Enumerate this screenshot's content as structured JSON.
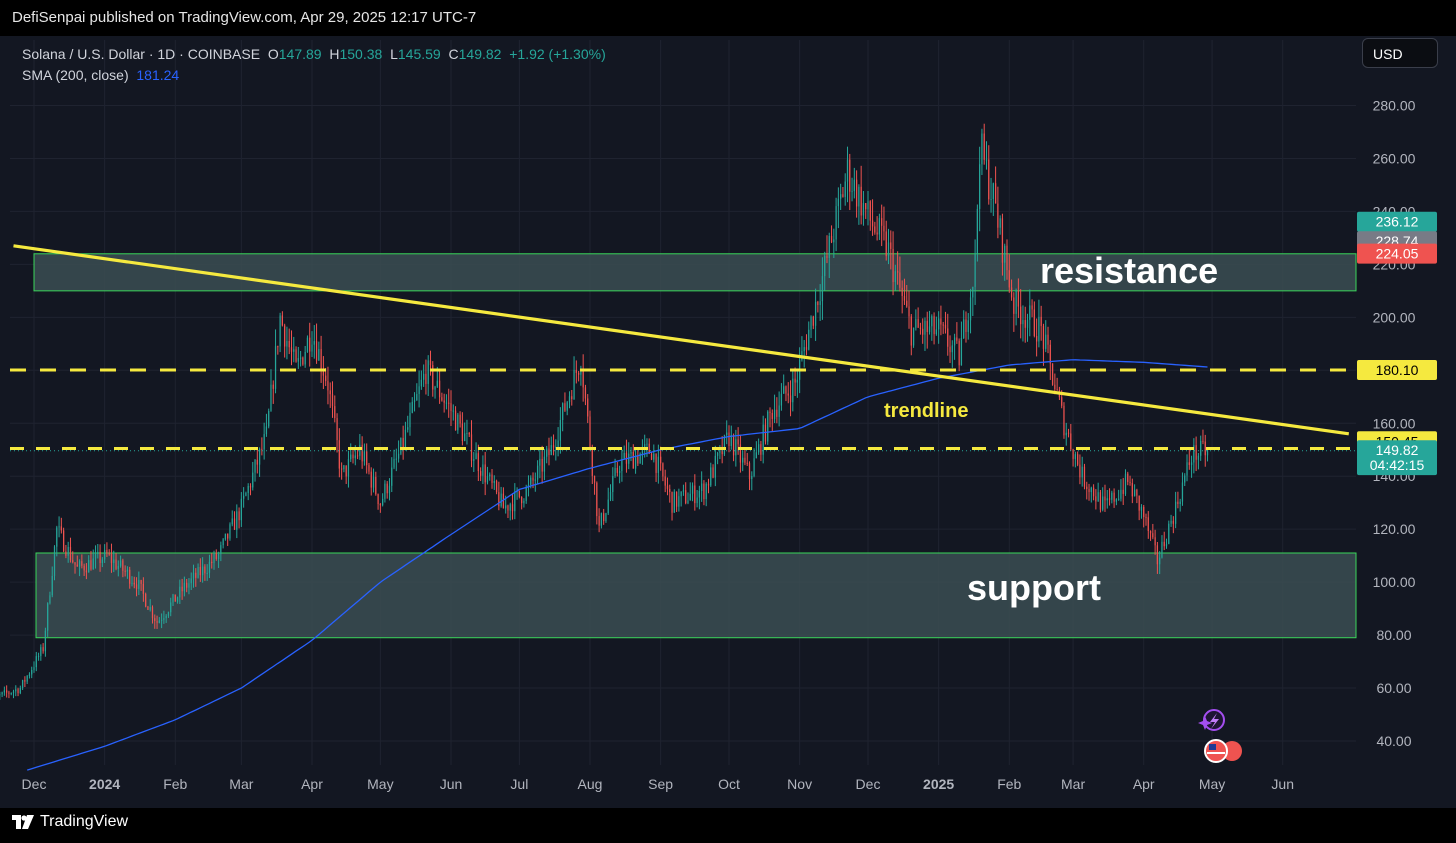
{
  "header": {
    "publish_text": "DefiSenpai published on TradingView.com, Apr 29, 2025 12:17 UTC-7"
  },
  "legend": {
    "symbol": "Solana / U.S. Dollar · 1D · COINBASE",
    "o_label": "O",
    "o": "147.89",
    "h_label": "H",
    "h": "150.38",
    "l_label": "L",
    "l": "145.59",
    "c_label": "C",
    "c": "149.82",
    "change": "+1.92 (+1.30%)",
    "sma_label": "SMA (200, close)",
    "sma_value": "181.24"
  },
  "currency_button": "USD",
  "footer": {
    "brand": "TradingView"
  },
  "colors": {
    "up": "#26a69a",
    "down": "#ef5350",
    "sma": "#2962ff",
    "trend": "#f5e93f",
    "zone": "#3b4d52",
    "zone_border": "#3ad65a"
  },
  "chart_data": {
    "type": "candlestick",
    "title": "Solana / U.S. Dollar · 1D · COINBASE",
    "ylim": [
      30,
      295
    ],
    "y_ticks": [
      "280.00",
      "260.00",
      "240.00",
      "220.00",
      "200.00",
      "180.00",
      "160.00",
      "140.00",
      "120.00",
      "100.00",
      "80.00",
      "60.00",
      "40.00"
    ],
    "x_ticks": [
      {
        "label": "Dec",
        "date": "2023-12-01",
        "bold": false
      },
      {
        "label": "2024",
        "date": "2024-01-01",
        "bold": true
      },
      {
        "label": "Feb",
        "date": "2024-02-01",
        "bold": false
      },
      {
        "label": "Mar",
        "date": "2024-03-01",
        "bold": false
      },
      {
        "label": "Apr",
        "date": "2024-04-01",
        "bold": false
      },
      {
        "label": "May",
        "date": "2024-05-01",
        "bold": false
      },
      {
        "label": "Jun",
        "date": "2024-06-01",
        "bold": false
      },
      {
        "label": "Jul",
        "date": "2024-07-01",
        "bold": false
      },
      {
        "label": "Aug",
        "date": "2024-08-01",
        "bold": false
      },
      {
        "label": "Sep",
        "date": "2024-09-01",
        "bold": false
      },
      {
        "label": "Oct",
        "date": "2024-10-01",
        "bold": false
      },
      {
        "label": "Nov",
        "date": "2024-11-01",
        "bold": false
      },
      {
        "label": "Dec",
        "date": "2024-12-01",
        "bold": false
      },
      {
        "label": "2025",
        "date": "2025-01-01",
        "bold": true
      },
      {
        "label": "Feb",
        "date": "2025-02-01",
        "bold": false
      },
      {
        "label": "Mar",
        "date": "2025-03-01",
        "bold": false
      },
      {
        "label": "Apr",
        "date": "2025-04-01",
        "bold": false
      },
      {
        "label": "May",
        "date": "2025-05-01",
        "bold": false
      },
      {
        "label": "Jun",
        "date": "2025-06-01",
        "bold": false
      }
    ],
    "price_anchors": [
      [
        "2023-11-10",
        55
      ],
      [
        "2023-11-25",
        60
      ],
      [
        "2023-12-05",
        75
      ],
      [
        "2023-12-11",
        120
      ],
      [
        "2023-12-20",
        105
      ],
      [
        "2024-01-02",
        110
      ],
      [
        "2024-01-15",
        100
      ],
      [
        "2024-01-24",
        85
      ],
      [
        "2024-02-05",
        98
      ],
      [
        "2024-02-20",
        110
      ],
      [
        "2024-03-01",
        128
      ],
      [
        "2024-03-12",
        155
      ],
      [
        "2024-03-18",
        200
      ],
      [
        "2024-03-25",
        180
      ],
      [
        "2024-04-01",
        195
      ],
      [
        "2024-04-08",
        175
      ],
      [
        "2024-04-14",
        140
      ],
      [
        "2024-04-22",
        150
      ],
      [
        "2024-05-01",
        130
      ],
      [
        "2024-05-10",
        150
      ],
      [
        "2024-05-21",
        180
      ],
      [
        "2024-06-01",
        165
      ],
      [
        "2024-06-10",
        150
      ],
      [
        "2024-06-24",
        128
      ],
      [
        "2024-07-05",
        135
      ],
      [
        "2024-07-15",
        150
      ],
      [
        "2024-07-28",
        185
      ],
      [
        "2024-08-05",
        120
      ],
      [
        "2024-08-14",
        145
      ],
      [
        "2024-08-28",
        150
      ],
      [
        "2024-09-06",
        130
      ],
      [
        "2024-09-20",
        135
      ],
      [
        "2024-10-01",
        155
      ],
      [
        "2024-10-10",
        140
      ],
      [
        "2024-10-20",
        165
      ],
      [
        "2024-10-30",
        175
      ],
      [
        "2024-11-11",
        215
      ],
      [
        "2024-11-22",
        255
      ],
      [
        "2024-12-01",
        238
      ],
      [
        "2024-12-10",
        225
      ],
      [
        "2024-12-20",
        195
      ],
      [
        "2025-01-01",
        195
      ],
      [
        "2025-01-10",
        185
      ],
      [
        "2025-01-17",
        220
      ],
      [
        "2025-01-19",
        265
      ],
      [
        "2025-01-25",
        245
      ],
      [
        "2025-02-03",
        205
      ],
      [
        "2025-02-15",
        195
      ],
      [
        "2025-02-25",
        160
      ],
      [
        "2025-03-05",
        140
      ],
      [
        "2025-03-15",
        128
      ],
      [
        "2025-03-25",
        138
      ],
      [
        "2025-04-01",
        125
      ],
      [
        "2025-04-07",
        108
      ],
      [
        "2025-04-15",
        128
      ],
      [
        "2025-04-22",
        148
      ],
      [
        "2025-04-29",
        149.82
      ]
    ],
    "sma_anchors": [
      [
        "2023-11-28",
        29
      ],
      [
        "2024-01-01",
        38
      ],
      [
        "2024-02-01",
        48
      ],
      [
        "2024-03-01",
        60
      ],
      [
        "2024-04-01",
        78
      ],
      [
        "2024-05-01",
        100
      ],
      [
        "2024-06-01",
        118
      ],
      [
        "2024-07-01",
        135
      ],
      [
        "2024-08-01",
        143
      ],
      [
        "2024-09-01",
        150
      ],
      [
        "2024-10-01",
        155
      ],
      [
        "2024-11-01",
        158
      ],
      [
        "2024-12-01",
        170
      ],
      [
        "2025-01-01",
        177
      ],
      [
        "2025-02-01",
        182
      ],
      [
        "2025-03-01",
        184
      ],
      [
        "2025-04-01",
        183
      ],
      [
        "2025-04-29",
        181.24
      ]
    ],
    "resistance_zone": [
      210,
      224
    ],
    "support_zone": [
      79,
      111
    ],
    "dashed_levels": [
      180.1,
      150.45
    ],
    "trendline": [
      [
        "2023-11-22",
        227
      ],
      [
        "2025-06-30",
        156
      ]
    ],
    "annotations": {
      "resistance": "resistance",
      "support": "support",
      "trendline": "trendline"
    },
    "price_labels": [
      {
        "text": "236.12",
        "bg": "#26a69a",
        "color": "#ffffff",
        "y": 236.12
      },
      {
        "text": "228.74",
        "bg": "#787b86",
        "color": "#ffffff",
        "y": 228.74
      },
      {
        "text": "224.05",
        "bg": "#ef5350",
        "color": "#ffffff",
        "y": 224.05
      },
      {
        "text": "180.10",
        "bg": "#f5e93f",
        "color": "#000000",
        "y": 180.1
      },
      {
        "text": "150.45",
        "bg": "#f5e93f",
        "color": "#000000",
        "y": 153.2
      },
      {
        "text": "149.82",
        "bg": "#26a69a",
        "color": "#ffffff",
        "y": 149.82
      },
      {
        "text": "04:42:15",
        "bg": "#26a69a",
        "color": "#ffffff",
        "y": 144.2
      }
    ]
  }
}
